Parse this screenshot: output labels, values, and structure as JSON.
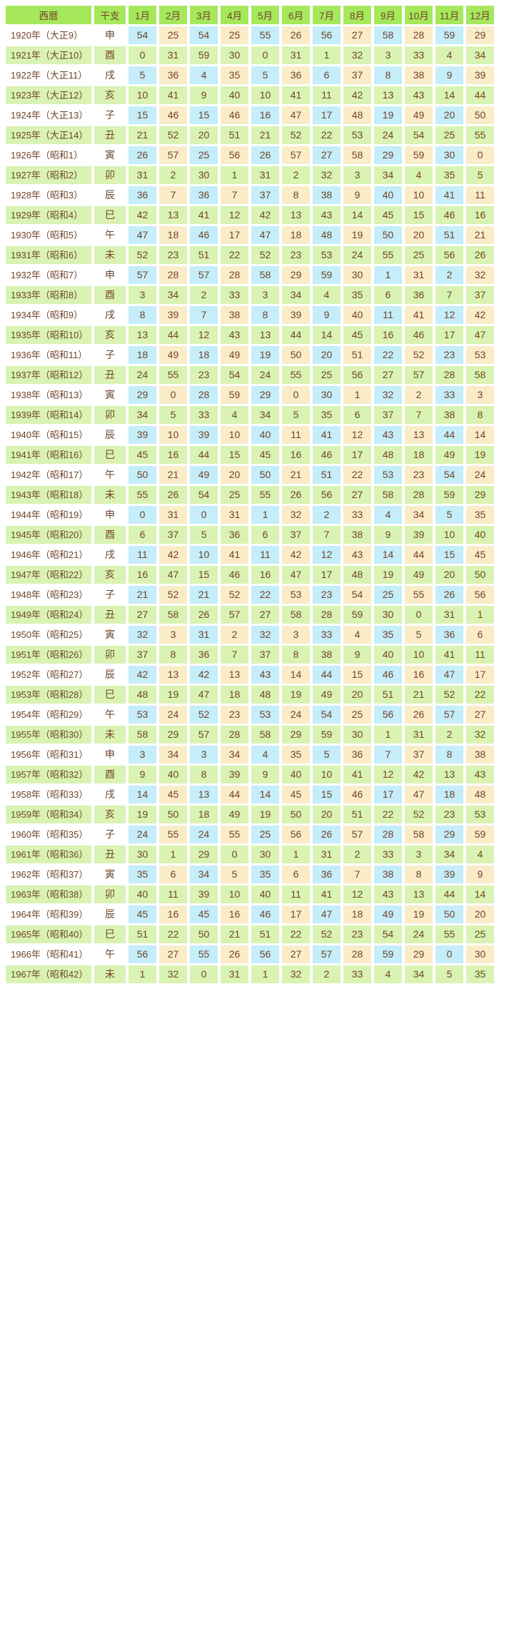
{
  "colors": {
    "header_bg": "#a6e85c",
    "row_green_bg": "#d9f3b3",
    "cell_blue_bg": "#c5edfa",
    "cell_cream_bg": "#fbecc9",
    "row_white_bg": "#ffffff",
    "text": "#6f4428"
  },
  "table": {
    "headers": [
      "西暦",
      "干支",
      "1月",
      "2月",
      "3月",
      "4月",
      "5月",
      "6月",
      "7月",
      "8月",
      "9月",
      "10月",
      "11月",
      "12月"
    ],
    "rows": [
      {
        "year": "1920年（大正9）",
        "eto": "申",
        "months": [
          54,
          25,
          54,
          25,
          55,
          26,
          56,
          27,
          58,
          28,
          59,
          29
        ]
      },
      {
        "year": "1921年（大正10）",
        "eto": "酉",
        "months": [
          0,
          31,
          59,
          30,
          0,
          31,
          1,
          32,
          3,
          33,
          4,
          34
        ]
      },
      {
        "year": "1922年（大正11）",
        "eto": "戌",
        "months": [
          5,
          36,
          4,
          35,
          5,
          36,
          6,
          37,
          8,
          38,
          9,
          39
        ]
      },
      {
        "year": "1923年（大正12）",
        "eto": "亥",
        "months": [
          10,
          41,
          9,
          40,
          10,
          41,
          11,
          42,
          13,
          43,
          14,
          44
        ]
      },
      {
        "year": "1924年（大正13）",
        "eto": "子",
        "months": [
          15,
          46,
          15,
          46,
          16,
          47,
          17,
          48,
          19,
          49,
          20,
          50
        ]
      },
      {
        "year": "1925年（大正14）",
        "eto": "丑",
        "months": [
          21,
          52,
          20,
          51,
          21,
          52,
          22,
          53,
          24,
          54,
          25,
          55
        ]
      },
      {
        "year": "1926年（昭和1）",
        "eto": "寅",
        "months": [
          26,
          57,
          25,
          56,
          26,
          57,
          27,
          58,
          29,
          59,
          30,
          0
        ]
      },
      {
        "year": "1927年（昭和2）",
        "eto": "卯",
        "months": [
          31,
          2,
          30,
          1,
          31,
          2,
          32,
          3,
          34,
          4,
          35,
          5
        ]
      },
      {
        "year": "1928年（昭和3）",
        "eto": "辰",
        "months": [
          36,
          7,
          36,
          7,
          37,
          8,
          38,
          9,
          40,
          10,
          41,
          11
        ]
      },
      {
        "year": "1929年（昭和4）",
        "eto": "巳",
        "months": [
          42,
          13,
          41,
          12,
          42,
          13,
          43,
          14,
          45,
          15,
          46,
          16
        ]
      },
      {
        "year": "1930年（昭和5）",
        "eto": "午",
        "months": [
          47,
          18,
          46,
          17,
          47,
          18,
          48,
          19,
          50,
          20,
          51,
          21
        ]
      },
      {
        "year": "1931年（昭和6）",
        "eto": "未",
        "months": [
          52,
          23,
          51,
          22,
          52,
          23,
          53,
          24,
          55,
          25,
          56,
          26
        ]
      },
      {
        "year": "1932年（昭和7）",
        "eto": "申",
        "months": [
          57,
          28,
          57,
          28,
          58,
          29,
          59,
          30,
          1,
          31,
          2,
          32
        ]
      },
      {
        "year": "1933年（昭和8）",
        "eto": "酉",
        "months": [
          3,
          34,
          2,
          33,
          3,
          34,
          4,
          35,
          6,
          36,
          7,
          37
        ]
      },
      {
        "year": "1934年（昭和9）",
        "eto": "戌",
        "months": [
          8,
          39,
          7,
          38,
          8,
          39,
          9,
          40,
          11,
          41,
          12,
          42
        ]
      },
      {
        "year": "1935年（昭和10）",
        "eto": "亥",
        "months": [
          13,
          44,
          12,
          43,
          13,
          44,
          14,
          45,
          16,
          46,
          17,
          47
        ]
      },
      {
        "year": "1936年（昭和11）",
        "eto": "子",
        "months": [
          18,
          49,
          18,
          49,
          19,
          50,
          20,
          51,
          22,
          52,
          23,
          53
        ]
      },
      {
        "year": "1937年（昭和12）",
        "eto": "丑",
        "months": [
          24,
          55,
          23,
          54,
          24,
          55,
          25,
          56,
          27,
          57,
          28,
          58
        ]
      },
      {
        "year": "1938年（昭和13）",
        "eto": "寅",
        "months": [
          29,
          0,
          28,
          59,
          29,
          0,
          30,
          1,
          32,
          2,
          33,
          3
        ]
      },
      {
        "year": "1939年（昭和14）",
        "eto": "卯",
        "months": [
          34,
          5,
          33,
          4,
          34,
          5,
          35,
          6,
          37,
          7,
          38,
          8
        ]
      },
      {
        "year": "1940年（昭和15）",
        "eto": "辰",
        "months": [
          39,
          10,
          39,
          10,
          40,
          11,
          41,
          12,
          43,
          13,
          44,
          14
        ]
      },
      {
        "year": "1941年（昭和16）",
        "eto": "巳",
        "months": [
          45,
          16,
          44,
          15,
          45,
          16,
          46,
          17,
          48,
          18,
          49,
          19
        ]
      },
      {
        "year": "1942年（昭和17）",
        "eto": "午",
        "months": [
          50,
          21,
          49,
          20,
          50,
          21,
          51,
          22,
          53,
          23,
          54,
          24
        ]
      },
      {
        "year": "1943年（昭和18）",
        "eto": "未",
        "months": [
          55,
          26,
          54,
          25,
          55,
          26,
          56,
          27,
          58,
          28,
          59,
          29
        ]
      },
      {
        "year": "1944年（昭和19）",
        "eto": "申",
        "months": [
          0,
          31,
          0,
          31,
          1,
          32,
          2,
          33,
          4,
          34,
          5,
          35
        ]
      },
      {
        "year": "1945年（昭和20）",
        "eto": "酉",
        "months": [
          6,
          37,
          5,
          36,
          6,
          37,
          7,
          38,
          9,
          39,
          10,
          40
        ]
      },
      {
        "year": "1946年（昭和21）",
        "eto": "戌",
        "months": [
          11,
          42,
          10,
          41,
          11,
          42,
          12,
          43,
          14,
          44,
          15,
          45
        ]
      },
      {
        "year": "1947年（昭和22）",
        "eto": "亥",
        "months": [
          16,
          47,
          15,
          46,
          16,
          47,
          17,
          48,
          19,
          49,
          20,
          50
        ]
      },
      {
        "year": "1948年（昭和23）",
        "eto": "子",
        "months": [
          21,
          52,
          21,
          52,
          22,
          53,
          23,
          54,
          25,
          55,
          26,
          56
        ]
      },
      {
        "year": "1949年（昭和24）",
        "eto": "丑",
        "months": [
          27,
          58,
          26,
          57,
          27,
          58,
          28,
          59,
          30,
          0,
          31,
          1
        ]
      },
      {
        "year": "1950年（昭和25）",
        "eto": "寅",
        "months": [
          32,
          3,
          31,
          2,
          32,
          3,
          33,
          4,
          35,
          5,
          36,
          6
        ]
      },
      {
        "year": "1951年（昭和26）",
        "eto": "卯",
        "months": [
          37,
          8,
          36,
          7,
          37,
          8,
          38,
          9,
          40,
          10,
          41,
          11
        ]
      },
      {
        "year": "1952年（昭和27）",
        "eto": "辰",
        "months": [
          42,
          13,
          42,
          13,
          43,
          14,
          44,
          15,
          46,
          16,
          47,
          17
        ]
      },
      {
        "year": "1953年（昭和28）",
        "eto": "巳",
        "months": [
          48,
          19,
          47,
          18,
          48,
          19,
          49,
          20,
          51,
          21,
          52,
          22
        ]
      },
      {
        "year": "1954年（昭和29）",
        "eto": "午",
        "months": [
          53,
          24,
          52,
          23,
          53,
          24,
          54,
          25,
          56,
          26,
          57,
          27
        ]
      },
      {
        "year": "1955年（昭和30）",
        "eto": "未",
        "months": [
          58,
          29,
          57,
          28,
          58,
          29,
          59,
          30,
          1,
          31,
          2,
          32
        ]
      },
      {
        "year": "1956年（昭和31）",
        "eto": "申",
        "months": [
          3,
          34,
          3,
          34,
          4,
          35,
          5,
          36,
          7,
          37,
          8,
          38
        ]
      },
      {
        "year": "1957年（昭和32）",
        "eto": "酉",
        "months": [
          9,
          40,
          8,
          39,
          9,
          40,
          10,
          41,
          12,
          42,
          13,
          43
        ]
      },
      {
        "year": "1958年（昭和33）",
        "eto": "戌",
        "months": [
          14,
          45,
          13,
          44,
          14,
          45,
          15,
          46,
          17,
          47,
          18,
          48
        ]
      },
      {
        "year": "1959年（昭和34）",
        "eto": "亥",
        "months": [
          19,
          50,
          18,
          49,
          19,
          50,
          20,
          51,
          22,
          52,
          23,
          53
        ]
      },
      {
        "year": "1960年（昭和35）",
        "eto": "子",
        "months": [
          24,
          55,
          24,
          55,
          25,
          56,
          26,
          57,
          28,
          58,
          29,
          59
        ]
      },
      {
        "year": "1961年（昭和36）",
        "eto": "丑",
        "months": [
          30,
          1,
          29,
          0,
          30,
          1,
          31,
          2,
          33,
          3,
          34,
          4
        ]
      },
      {
        "year": "1962年（昭和37）",
        "eto": "寅",
        "months": [
          35,
          6,
          34,
          5,
          35,
          6,
          36,
          7,
          38,
          8,
          39,
          9
        ]
      },
      {
        "year": "1963年（昭和38）",
        "eto": "卯",
        "months": [
          40,
          11,
          39,
          10,
          40,
          11,
          41,
          12,
          43,
          13,
          44,
          14
        ]
      },
      {
        "year": "1964年（昭和39）",
        "eto": "辰",
        "months": [
          45,
          16,
          45,
          16,
          46,
          17,
          47,
          18,
          49,
          19,
          50,
          20
        ]
      },
      {
        "year": "1965年（昭和40）",
        "eto": "巳",
        "months": [
          51,
          22,
          50,
          21,
          51,
          22,
          52,
          23,
          54,
          24,
          55,
          25
        ]
      },
      {
        "year": "1966年（昭和41）",
        "eto": "午",
        "months": [
          56,
          27,
          55,
          26,
          56,
          27,
          57,
          28,
          59,
          29,
          0,
          30
        ]
      },
      {
        "year": "1967年（昭和42）",
        "eto": "未",
        "months": [
          1,
          32,
          0,
          31,
          1,
          32,
          2,
          33,
          4,
          34,
          5,
          35
        ]
      }
    ]
  }
}
